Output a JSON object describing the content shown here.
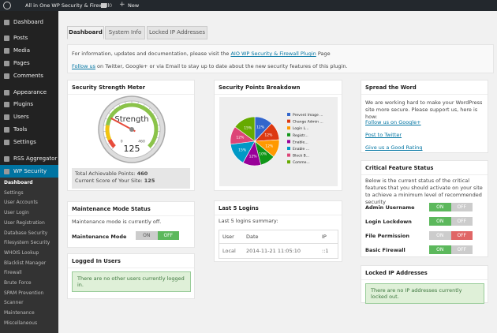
{
  "admin_bar": {
    "site": "All in One WP Security & Firewall",
    "comments": "0",
    "new": "New"
  },
  "menu": [
    "Dashboard",
    "Posts",
    "Media",
    "Pages",
    "Comments",
    "Appearance",
    "Plugins",
    "Users",
    "Tools",
    "Settings",
    "RSS Aggregator",
    "WP Security"
  ],
  "submenu": [
    "Dashboard",
    "Settings",
    "User Accounts",
    "User Login",
    "User Registration",
    "Database Security",
    "Filesystem Security",
    "WHOIS Lookup",
    "Blacklist Manager",
    "Firewall",
    "Brute Force",
    "SPAM Prevention",
    "Scanner",
    "Maintenance",
    "Miscellaneous"
  ],
  "tabs": [
    "Dashboard",
    "System Info",
    "Locked IP Addresses"
  ],
  "info": {
    "line1_text": "For information, updates and documentation, please visit the",
    "line1_link": "AIO WP Security & Firewall Plugin",
    "line1_end": "Page",
    "line2_link": "Follow us",
    "line2_text": "on Twitter, Google+ or via Email to stay up to date about the new security features of this plugin."
  },
  "switch": {
    "on": "ON",
    "off": "OFF"
  },
  "strength_meter": {
    "title": "Security Strength Meter",
    "gauge_label": "Strength",
    "min": 0,
    "max": 460,
    "score": 125,
    "total_label": "Total Achievable Points:",
    "current_label": "Current Score of Your Site:"
  },
  "breakdown": {
    "title": "Security Points Breakdown",
    "slices": [
      {
        "label": "Prevent Image ...",
        "color": "#3366cc",
        "value": 12,
        "value_label": "12%"
      },
      {
        "label": "Change Admin ...",
        "color": "#dc3912",
        "value": 12,
        "value_label": "12%"
      },
      {
        "label": "Login L...",
        "color": "#ff9900",
        "value": 12,
        "value_label": "12%"
      },
      {
        "label": "Registr...",
        "color": "#109618",
        "value": 10,
        "value_label": "10%"
      },
      {
        "label": "Enable...",
        "color": "#990099",
        "value": 12,
        "value_label": "12%"
      },
      {
        "label": "Enable ...",
        "color": "#0099c6",
        "value": 15,
        "value_label": "15%"
      },
      {
        "label": "Block B...",
        "color": "#dd4477",
        "value": 12,
        "value_label": "12%"
      },
      {
        "label": "Comme...",
        "color": "#66aa00",
        "value": 15,
        "value_label": "15%"
      }
    ]
  },
  "spread": {
    "title": "Spread the Word",
    "text": "We are working hard to make your WordPress site more secure. Please support us, here is how:",
    "links": [
      "Follow us on Google+",
      "Post to Twitter",
      "Give us a Good Rating"
    ]
  },
  "critical": {
    "title": "Critical Feature Status",
    "text": "Below is the current status of the critical features that you should activate on your site to achieve a minimum level of recommended security",
    "features": [
      {
        "name": "Admin Username",
        "active": true
      },
      {
        "name": "Login Lockdown",
        "active": true
      },
      {
        "name": "File Permission",
        "active": false
      },
      {
        "name": "Basic Firewall",
        "active": true
      }
    ]
  },
  "maintenance": {
    "title": "Maintenance Mode Status",
    "text": "Maintenance mode is currently off.",
    "label": "Maintenance Mode",
    "active": false
  },
  "logged_in": {
    "title": "Logged In Users",
    "message": "There are no other users currently logged in."
  },
  "logins": {
    "title": "Last 5 Logins",
    "summary": "Last 5 logins summary:",
    "columns": [
      "User",
      "Date",
      "IP"
    ],
    "rows": [
      [
        "Local",
        "2014-11-21 11:05:10",
        "::1"
      ]
    ]
  },
  "locked": {
    "title": "Locked IP Addresses",
    "message": "There are no IP addresses currently locked out."
  }
}
